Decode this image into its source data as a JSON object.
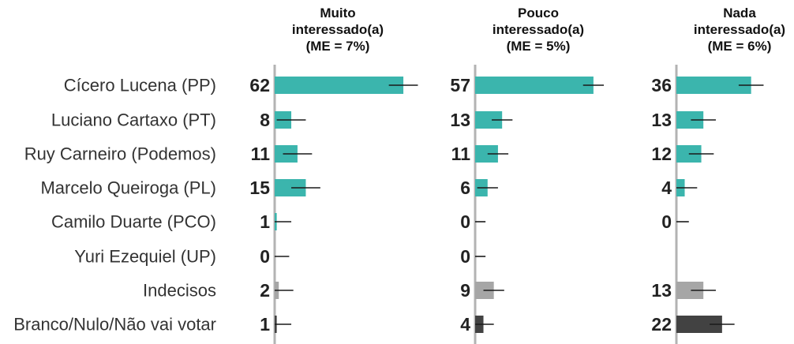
{
  "chart_data": {
    "type": "bar",
    "orientation": "horizontal",
    "categories": [
      "Cícero Lucena (PP)",
      "Luciano Cartaxo (PT)",
      "Ruy Carneiro (Podemos)",
      "Marcelo Queiroga (PL)",
      "Camilo Duarte (PCO)",
      "Yuri Ezequiel (UP)",
      "Indecisos",
      "Branco/Nulo/Não vai votar"
    ],
    "series": [
      {
        "name": "Muito interessado(a)",
        "title_lines": [
          "Muito",
          "interessado(a)",
          "(ME = 7%)"
        ],
        "values": [
          62,
          8,
          11,
          15,
          1,
          0,
          2,
          1
        ]
      },
      {
        "name": "Pouco interessado(a)",
        "title_lines": [
          "Pouco",
          "interessado(a)",
          "(ME = 5%)"
        ],
        "values": [
          57,
          13,
          11,
          6,
          0,
          0,
          9,
          4
        ]
      },
      {
        "name": "Nada interessado(a)",
        "title_lines": [
          "Nada",
          "interessado(a)",
          "(ME = 6%)"
        ],
        "values": [
          36,
          13,
          12,
          4,
          0,
          null,
          13,
          22
        ]
      }
    ],
    "margins_of_error": [
      7,
      5,
      6
    ],
    "xlim": [
      0,
      100
    ],
    "grid": false,
    "legend": "none",
    "colors": {
      "candidate": "#3bb5ad",
      "indecisos": "#a6a6a6",
      "branco_nulo": "#424242",
      "axis": "#b3b3b3",
      "error_bar": "#1a1a1a"
    }
  }
}
